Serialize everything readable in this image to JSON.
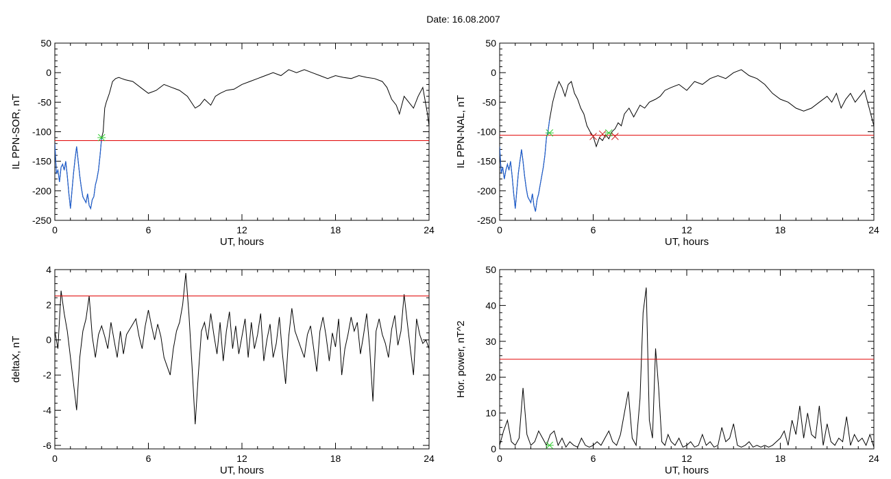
{
  "figure": {
    "title": "Date:  16.08.2007"
  },
  "colors": {
    "data_line": "#000000",
    "substorm_segment": "#1f5fd0",
    "threshold_line": "#e00000",
    "onset_marker": "#33cc33",
    "end_marker": "#cc2222",
    "start_marker": "#2222cc"
  },
  "chart_data": [
    {
      "type": "line",
      "panel": "top-left",
      "title": "",
      "xlabel": "UT, hours",
      "ylabel": "IL PPN-SOR, nT",
      "xlim": [
        0,
        24
      ],
      "ylim": [
        -250,
        50
      ],
      "xticks": [
        "0",
        "6",
        "12",
        "18",
        "24"
      ],
      "yticks": [
        "-250",
        "-200",
        "-150",
        "-100",
        "-50",
        "0",
        "50"
      ],
      "grid": false,
      "threshold": -115,
      "series": [
        {
          "x": [
            0,
            0.1,
            0.2,
            0.3,
            0.4,
            0.5,
            0.6,
            0.7,
            0.8,
            0.9,
            1.0,
            1.1,
            1.2,
            1.3,
            1.4,
            1.5,
            1.6,
            1.7,
            1.8,
            1.9,
            2.0,
            2.1,
            2.2,
            2.3,
            2.4,
            2.5,
            2.6,
            2.7,
            2.8,
            2.9,
            3.0,
            3.1,
            3.2,
            3.3,
            3.5,
            3.7,
            3.9,
            4.1,
            4.3,
            4.5,
            5.0,
            5.5,
            6.0,
            6.5,
            7.0,
            7.5,
            8.0,
            8.5,
            9.0,
            9.3,
            9.6,
            10.0,
            10.3,
            10.6,
            11.0,
            11.5,
            12.0,
            12.5,
            13.0,
            13.5,
            14.0,
            14.5,
            15.0,
            15.5,
            16.0,
            16.5,
            17.0,
            17.5,
            18.0,
            18.5,
            19.0,
            19.5,
            20.0,
            20.5,
            21.0,
            21.3,
            21.6,
            21.9,
            22.1,
            22.4,
            22.7,
            23.0,
            23.3,
            23.6,
            23.9,
            24.0
          ],
          "y": [
            -120,
            -170,
            -165,
            -185,
            -160,
            -155,
            -165,
            -150,
            -175,
            -205,
            -230,
            -200,
            -170,
            -145,
            -125,
            -150,
            -175,
            -195,
            -210,
            -215,
            -220,
            -205,
            -225,
            -230,
            -215,
            -210,
            -190,
            -180,
            -165,
            -140,
            -110,
            -100,
            -60,
            -50,
            -35,
            -15,
            -10,
            -8,
            -10,
            -12,
            -15,
            -25,
            -35,
            -30,
            -20,
            -25,
            -30,
            -40,
            -60,
            -55,
            -45,
            -55,
            -40,
            -35,
            -30,
            -28,
            -20,
            -15,
            -10,
            -5,
            0,
            -5,
            5,
            0,
            5,
            0,
            -5,
            -10,
            -5,
            -8,
            -10,
            -5,
            -8,
            -10,
            -15,
            -25,
            -45,
            -55,
            -70,
            -40,
            -50,
            -60,
            -40,
            -25,
            -70,
            -90
          ]
        }
      ],
      "markers": [
        {
          "x": 3.0,
          "y": -110,
          "role": "onset"
        }
      ]
    },
    {
      "type": "line",
      "panel": "top-right",
      "title": "",
      "xlabel": "UT, hours",
      "ylabel": "IL PPN-NAL, nT",
      "xlim": [
        0,
        24
      ],
      "ylim": [
        -250,
        50
      ],
      "xticks": [
        "0",
        "6",
        "12",
        "18",
        "24"
      ],
      "yticks": [
        "-250",
        "-200",
        "-150",
        "-100",
        "-50",
        "0",
        "50"
      ],
      "grid": false,
      "threshold": -106,
      "series": [
        {
          "x": [
            0,
            0.1,
            0.2,
            0.3,
            0.4,
            0.5,
            0.6,
            0.7,
            0.8,
            0.9,
            1.0,
            1.1,
            1.2,
            1.3,
            1.4,
            1.5,
            1.6,
            1.7,
            1.8,
            1.9,
            2.0,
            2.1,
            2.2,
            2.3,
            2.4,
            2.5,
            2.6,
            2.7,
            2.8,
            2.9,
            3.0,
            3.1,
            3.2,
            3.4,
            3.6,
            3.8,
            4.0,
            4.2,
            4.4,
            4.6,
            4.8,
            5.0,
            5.2,
            5.4,
            5.6,
            5.8,
            6.0,
            6.2,
            6.4,
            6.6,
            6.8,
            7.0,
            7.2,
            7.4,
            7.6,
            7.8,
            8.0,
            8.3,
            8.6,
            9.0,
            9.3,
            9.6,
            10.0,
            10.3,
            10.6,
            11.0,
            11.5,
            12.0,
            12.5,
            13.0,
            13.5,
            14.0,
            14.5,
            15.0,
            15.5,
            16.0,
            16.5,
            17.0,
            17.5,
            18.0,
            18.5,
            19.0,
            19.5,
            20.0,
            20.5,
            21.0,
            21.3,
            21.6,
            21.9,
            22.2,
            22.5,
            22.8,
            23.1,
            23.4,
            23.7,
            24.0
          ],
          "y": [
            -125,
            -170,
            -160,
            -180,
            -165,
            -155,
            -165,
            -150,
            -175,
            -205,
            -230,
            -200,
            -170,
            -150,
            -130,
            -150,
            -175,
            -195,
            -210,
            -215,
            -220,
            -205,
            -225,
            -235,
            -215,
            -205,
            -190,
            -175,
            -160,
            -140,
            -110,
            -100,
            -80,
            -50,
            -30,
            -15,
            -25,
            -40,
            -20,
            -15,
            -35,
            -45,
            -60,
            -70,
            -90,
            -100,
            -108,
            -125,
            -110,
            -115,
            -105,
            -112,
            -100,
            -95,
            -85,
            -90,
            -70,
            -60,
            -75,
            -55,
            -60,
            -50,
            -45,
            -40,
            -30,
            -25,
            -20,
            -30,
            -15,
            -20,
            -10,
            -5,
            -10,
            0,
            5,
            -5,
            -10,
            -20,
            -35,
            -45,
            -50,
            -60,
            -65,
            -60,
            -50,
            -40,
            -50,
            -35,
            -60,
            -45,
            -35,
            -50,
            -40,
            -30,
            -60,
            -90
          ]
        }
      ],
      "markers": [
        {
          "x": 3.2,
          "y": -102,
          "role": "onset"
        },
        {
          "x": 6.0,
          "y": -108,
          "role": "end"
        },
        {
          "x": 6.6,
          "y": -104,
          "role": "end"
        },
        {
          "x": 7.0,
          "y": -102,
          "role": "onset"
        },
        {
          "x": 7.4,
          "y": -108,
          "role": "end"
        }
      ]
    },
    {
      "type": "line",
      "panel": "bottom-left",
      "title": "",
      "xlabel": "UT, hours",
      "ylabel": "deltaX, nT",
      "xlim": [
        0,
        24
      ],
      "ylim": [
        -6.2,
        4
      ],
      "xticks": [
        "0",
        "6",
        "12",
        "18",
        "24"
      ],
      "yticks": [
        "-6",
        "-4",
        "-2",
        "0",
        "2",
        "4"
      ],
      "grid": false,
      "threshold": 2.5,
      "series": [
        {
          "x": [
            0,
            0.2,
            0.4,
            0.6,
            0.8,
            1.0,
            1.2,
            1.4,
            1.6,
            1.8,
            2.0,
            2.2,
            2.4,
            2.6,
            2.8,
            3.0,
            3.2,
            3.4,
            3.6,
            3.8,
            4.0,
            4.2,
            4.4,
            4.6,
            4.8,
            5.0,
            5.2,
            5.4,
            5.6,
            5.8,
            6.0,
            6.2,
            6.4,
            6.6,
            6.8,
            7.0,
            7.2,
            7.4,
            7.6,
            7.8,
            8.0,
            8.2,
            8.4,
            8.6,
            8.8,
            9.0,
            9.2,
            9.4,
            9.6,
            9.8,
            10.0,
            10.2,
            10.4,
            10.6,
            10.8,
            11.0,
            11.2,
            11.4,
            11.6,
            11.8,
            12.0,
            12.2,
            12.4,
            12.6,
            12.8,
            13.0,
            13.2,
            13.4,
            13.6,
            13.8,
            14.0,
            14.2,
            14.4,
            14.6,
            14.8,
            15.0,
            15.2,
            15.4,
            15.6,
            15.8,
            16.0,
            16.2,
            16.4,
            16.6,
            16.8,
            17.0,
            17.2,
            17.4,
            17.6,
            17.8,
            18.0,
            18.2,
            18.4,
            18.6,
            18.8,
            19.0,
            19.2,
            19.4,
            19.6,
            19.8,
            20.0,
            20.2,
            20.4,
            20.6,
            20.8,
            21.0,
            21.2,
            21.4,
            21.6,
            21.8,
            22.0,
            22.2,
            22.4,
            22.6,
            22.8,
            23.0,
            23.2,
            23.4,
            23.6,
            23.8,
            24.0
          ],
          "y": [
            0.5,
            -0.5,
            2.8,
            1.5,
            0.5,
            -1.0,
            -2.5,
            -4.0,
            -1.0,
            0.5,
            1.2,
            2.5,
            0.2,
            -1.0,
            0.3,
            0.8,
            0.2,
            -0.5,
            1.0,
            0.0,
            -1.0,
            0.5,
            -0.8,
            0.3,
            0.6,
            0.9,
            1.2,
            0.2,
            -0.5,
            0.8,
            1.7,
            0.8,
            0.0,
            0.9,
            0.2,
            -1.0,
            -1.5,
            -2.0,
            -0.5,
            0.5,
            1.0,
            2.0,
            3.8,
            1.5,
            -1.5,
            -4.8,
            -2.0,
            0.5,
            1.0,
            0.0,
            1.5,
            0.3,
            -0.8,
            1.0,
            -1.2,
            0.5,
            1.6,
            -0.5,
            0.8,
            -0.8,
            0.2,
            1.2,
            -1.0,
            1.0,
            -0.5,
            0.3,
            1.5,
            -1.2,
            0.0,
            0.9,
            -1.0,
            -0.2,
            1.3,
            -0.8,
            -2.5,
            0.2,
            1.8,
            0.5,
            0.0,
            -0.5,
            -1.0,
            0.3,
            0.8,
            -0.5,
            -1.8,
            0.5,
            1.3,
            0.2,
            -1.2,
            0.4,
            -0.4,
            1.2,
            -2.0,
            -0.5,
            0.3,
            1.3,
            0.5,
            1.0,
            -0.8,
            0.3,
            1.5,
            -0.5,
            -3.5,
            0.5,
            1.2,
            0.3,
            -0.2,
            -1.0,
            0.6,
            1.4,
            -0.3,
            0.5,
            2.6,
            1.0,
            -0.5,
            -2.0,
            1.2,
            0.3,
            -0.2,
            0.0,
            -0.5
          ]
        }
      ],
      "markers": []
    },
    {
      "type": "line",
      "panel": "bottom-right",
      "title": "",
      "xlabel": "UT, hours",
      "ylabel": "Hor. power, nT^2",
      "xlim": [
        0,
        24
      ],
      "ylim": [
        0,
        50
      ],
      "xticks": [
        "0",
        "6",
        "12",
        "18",
        "24"
      ],
      "yticks": [
        "0",
        "10",
        "20",
        "30",
        "40",
        "50"
      ],
      "grid": false,
      "threshold": 25,
      "series": [
        {
          "x": [
            0,
            0.25,
            0.5,
            0.75,
            1.0,
            1.25,
            1.5,
            1.75,
            2.0,
            2.25,
            2.5,
            2.75,
            3.0,
            3.25,
            3.5,
            3.75,
            4.0,
            4.25,
            4.5,
            4.75,
            5.0,
            5.25,
            5.5,
            5.75,
            6.0,
            6.25,
            6.5,
            6.75,
            7.0,
            7.25,
            7.5,
            7.75,
            8.0,
            8.25,
            8.5,
            8.75,
            9.0,
            9.2,
            9.4,
            9.6,
            9.8,
            10.0,
            10.2,
            10.4,
            10.6,
            10.8,
            11.0,
            11.25,
            11.5,
            11.75,
            12.0,
            12.25,
            12.5,
            12.75,
            13.0,
            13.25,
            13.5,
            13.75,
            14.0,
            14.25,
            14.5,
            14.75,
            15.0,
            15.25,
            15.5,
            15.75,
            16.0,
            16.25,
            16.5,
            16.75,
            17.0,
            17.25,
            17.5,
            17.75,
            18.0,
            18.25,
            18.5,
            18.75,
            19.0,
            19.25,
            19.5,
            19.75,
            20.0,
            20.25,
            20.5,
            20.75,
            21.0,
            21.25,
            21.5,
            21.75,
            22.0,
            22.25,
            22.5,
            22.75,
            23.0,
            23.25,
            23.5,
            23.75,
            24.0
          ],
          "y": [
            1,
            5,
            8,
            2,
            1,
            3,
            17,
            4,
            1,
            2,
            5,
            3,
            1,
            4,
            5,
            1,
            3,
            0.5,
            2,
            1,
            0.5,
            3,
            1,
            0.5,
            1,
            2,
            1,
            3,
            5,
            2,
            1,
            4,
            10,
            16,
            3,
            1,
            14,
            38,
            45,
            8,
            3,
            28,
            17,
            2,
            1,
            4,
            2,
            1,
            3,
            0.5,
            1,
            2,
            0.5,
            1,
            4,
            1,
            2,
            0.5,
            1,
            6,
            2,
            3,
            7,
            1,
            0.5,
            1,
            2,
            0.5,
            1,
            0.5,
            1,
            0.5,
            1,
            2,
            3,
            5,
            1,
            8,
            4,
            12,
            3,
            10,
            4,
            3,
            12,
            1,
            7,
            2,
            1,
            3,
            2,
            9,
            1,
            4,
            2,
            3,
            1,
            4,
            0.5
          ]
        }
      ],
      "markers": [
        {
          "x": 3.2,
          "y": 1,
          "role": "onset"
        }
      ]
    }
  ]
}
